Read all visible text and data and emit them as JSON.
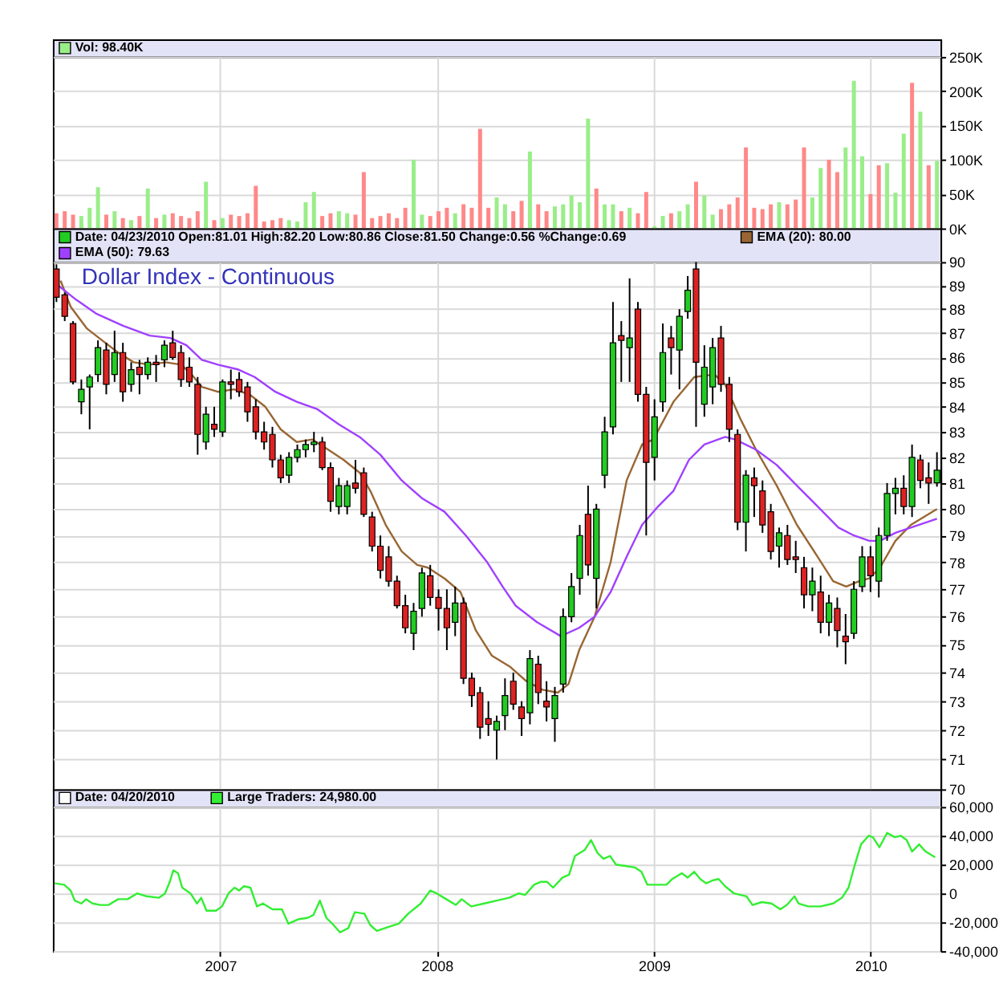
{
  "chart_data": [
    {
      "type": "bar",
      "x": [
        "2006-03-31",
        "2006-04-14",
        "2006-04-28",
        "2006-05-12",
        "2006-05-26",
        "2006-06-09",
        "2006-06-23",
        "2006-07-07",
        "2006-07-21",
        "2006-08-04",
        "2006-08-18",
        "2006-09-01",
        "2006-09-15",
        "2006-09-29",
        "2006-10-13",
        "2006-10-27",
        "2006-11-10",
        "2006-11-24",
        "2006-12-08",
        "2006-12-22",
        "2007-01-05",
        "2007-01-19",
        "2007-02-02",
        "2007-02-16",
        "2007-03-02",
        "2007-03-16",
        "2007-03-30",
        "2007-04-13",
        "2007-04-27",
        "2007-05-11",
        "2007-05-25",
        "2007-06-08",
        "2007-06-22",
        "2007-07-06",
        "2007-07-20",
        "2007-08-03",
        "2007-08-17",
        "2007-08-31",
        "2007-09-14",
        "2007-09-28",
        "2007-10-12",
        "2007-10-26",
        "2007-11-09",
        "2007-11-23",
        "2007-12-07",
        "2007-12-21",
        "2008-01-04",
        "2008-01-18",
        "2008-02-01",
        "2008-02-15",
        "2008-02-29",
        "2008-03-14",
        "2008-03-28",
        "2008-04-11",
        "2008-04-25",
        "2008-05-09",
        "2008-05-23",
        "2008-06-06",
        "2008-06-20",
        "2008-07-04",
        "2008-07-18",
        "2008-08-01",
        "2008-08-15",
        "2008-08-29",
        "2008-09-12",
        "2008-09-26",
        "2008-10-10",
        "2008-10-24",
        "2008-11-07",
        "2008-11-21",
        "2008-12-05",
        "2008-12-19",
        "2009-01-02",
        "2009-01-16",
        "2009-01-30",
        "2009-02-13",
        "2009-02-27",
        "2009-03-13",
        "2009-03-27",
        "2009-04-10",
        "2009-04-24",
        "2009-05-08",
        "2009-05-22",
        "2009-06-05",
        "2009-06-19",
        "2009-07-03",
        "2009-07-17",
        "2009-07-31",
        "2009-08-14",
        "2009-08-28",
        "2009-09-11",
        "2009-09-25",
        "2009-10-09",
        "2009-10-23",
        "2009-11-06",
        "2009-11-20",
        "2009-12-04",
        "2009-12-18",
        "2010-01-01",
        "2010-01-15",
        "2010-01-29",
        "2010-02-12",
        "2010-02-26",
        "2010-03-12",
        "2010-03-26",
        "2010-04-09",
        "2010-04-23"
      ],
      "series": [
        {
          "name": "Vol: 98.40K",
          "color": "#99ee88",
          "values": [
            22000,
            25000,
            20000,
            18000,
            30000,
            60000,
            20000,
            25000,
            15000,
            12000,
            18000,
            58000,
            15000,
            20000,
            22000,
            18000,
            15000,
            25000,
            68000,
            12000,
            15000,
            20000,
            18000,
            22000,
            62000,
            10000,
            12000,
            15000,
            12000,
            10000,
            38000,
            53000,
            18000,
            22000,
            25000,
            22000,
            20000,
            82000,
            15000,
            18000,
            22000,
            15000,
            30000,
            100000,
            20000,
            18000,
            25000,
            30000,
            22000,
            35000,
            30000,
            145000,
            30000,
            45000,
            35000,
            25000,
            40000,
            112000,
            35000,
            25000,
            32000,
            35000,
            48000,
            38000,
            160000,
            58000,
            35000,
            35000,
            25000,
            30000,
            22000,
            53000,
            3000,
            18000,
            22000,
            25000,
            35000,
            68000,
            48000,
            20000,
            28000,
            35000,
            45000,
            118000,
            30000,
            28000,
            35000,
            38000,
            35000,
            42000,
            118000,
            45000,
            88000,
            100000,
            82000,
            118000,
            215000,
            105000,
            50000,
            92000,
            95000,
            52000,
            138000,
            212000,
            170000,
            92000,
            98400
          ],
          "colors": [
            "#ff8888",
            "#ff8888",
            "#ff8888",
            "#99ee88",
            "#99ee88",
            "#99ee88",
            "#ff8888",
            "#99ee88",
            "#ff8888",
            "#99ee88",
            "#ff8888",
            "#99ee88",
            "#ff8888",
            "#99ee88",
            "#ff8888",
            "#ff8888",
            "#ff8888",
            "#ff8888",
            "#99ee88",
            "#ff8888",
            "#99ee88",
            "#ff8888",
            "#ff8888",
            "#ff8888",
            "#ff8888",
            "#ff8888",
            "#ff8888",
            "#ff8888",
            "#99ee88",
            "#99ee88",
            "#99ee88",
            "#99ee88",
            "#ff8888",
            "#ff8888",
            "#99ee88",
            "#99ee88",
            "#ff8888",
            "#ff8888",
            "#ff8888",
            "#ff8888",
            "#ff8888",
            "#ff8888",
            "#ff8888",
            "#99ee88",
            "#99ee88",
            "#ff8888",
            "#ff8888",
            "#ff8888",
            "#99ee88",
            "#ff8888",
            "#ff8888",
            "#ff8888",
            "#ff8888",
            "#99ee88",
            "#99ee88",
            "#ff8888",
            "#ff8888",
            "#99ee88",
            "#ff8888",
            "#ff8888",
            "#99ee88",
            "#99ee88",
            "#99ee88",
            "#99ee88",
            "#99ee88",
            "#ff8888",
            "#99ee88",
            "#99ee88",
            "#ff8888",
            "#99ee88",
            "#ff8888",
            "#ff8888",
            "#99ee88",
            "#99ee88",
            "#ff8888",
            "#99ee88",
            "#99ee88",
            "#ff8888",
            "#99ee88",
            "#99ee88",
            "#ff8888",
            "#ff8888",
            "#ff8888",
            "#ff8888",
            "#ff8888",
            "#ff8888",
            "#ff8888",
            "#99ee88",
            "#ff8888",
            "#ff8888",
            "#ff8888",
            "#99ee88",
            "#99ee88",
            "#ff8888",
            "#ff8888",
            "#99ee88",
            "#99ee88",
            "#99ee88",
            "#ff8888",
            "#ff8888",
            "#99ee88",
            "#99ee88",
            "#99ee88",
            "#ff8888",
            "#99ee88",
            "#ff8888",
            "#99ee88"
          ]
        }
      ],
      "ylim": [
        0,
        250000
      ],
      "yticks": [
        {
          "value": 0,
          "label": "0K"
        },
        {
          "value": 50000,
          "label": "50K"
        },
        {
          "value": 100000,
          "label": "100K"
        },
        {
          "value": 150000,
          "label": "150K"
        },
        {
          "value": 200000,
          "label": "200K"
        },
        {
          "value": 250000,
          "label": "250K"
        }
      ],
      "xlim": [
        "2006-03-25",
        "2010-04-29"
      ],
      "xticks": [
        "2007",
        "2008",
        "2009",
        "2010"
      ],
      "grid": true,
      "tick_labels": "y",
      "legend": "top left"
    },
    {
      "type": "candlestick",
      "title": "Dollar Index - Continuous",
      "annotations": [
        "Date: 04/23/2010 Open:81.01 High:82.20 Low:80.86 Close:81.50 Change:0.56 %Change:0.69"
      ],
      "x": [
        "2006-03-31",
        "2006-04-14",
        "2006-04-28",
        "2006-05-12",
        "2006-05-26",
        "2006-06-09",
        "2006-06-23",
        "2006-07-07",
        "2006-07-21",
        "2006-08-04",
        "2006-08-18",
        "2006-09-01",
        "2006-09-15",
        "2006-09-29",
        "2006-10-13",
        "2006-10-27",
        "2006-11-10",
        "2006-11-24",
        "2006-12-08",
        "2006-12-22",
        "2007-01-05",
        "2007-01-19",
        "2007-02-02",
        "2007-02-16",
        "2007-03-02",
        "2007-03-16",
        "2007-03-30",
        "2007-04-13",
        "2007-04-27",
        "2007-05-11",
        "2007-05-25",
        "2007-06-08",
        "2007-06-22",
        "2007-07-06",
        "2007-07-20",
        "2007-08-03",
        "2007-08-17",
        "2007-08-31",
        "2007-09-14",
        "2007-09-28",
        "2007-10-12",
        "2007-10-26",
        "2007-11-09",
        "2007-11-23",
        "2007-12-07",
        "2007-12-21",
        "2008-01-04",
        "2008-01-18",
        "2008-02-01",
        "2008-02-15",
        "2008-02-29",
        "2008-03-14",
        "2008-03-28",
        "2008-04-11",
        "2008-04-25",
        "2008-05-09",
        "2008-05-23",
        "2008-06-06",
        "2008-06-20",
        "2008-07-04",
        "2008-07-18",
        "2008-08-01",
        "2008-08-15",
        "2008-08-29",
        "2008-09-12",
        "2008-09-26",
        "2008-10-10",
        "2008-10-24",
        "2008-11-07",
        "2008-11-21",
        "2008-12-05",
        "2008-12-19",
        "2009-01-02",
        "2009-01-16",
        "2009-01-30",
        "2009-02-13",
        "2009-02-27",
        "2009-03-13",
        "2009-03-27",
        "2009-04-10",
        "2009-04-24",
        "2009-05-08",
        "2009-05-22",
        "2009-06-05",
        "2009-06-19",
        "2009-07-03",
        "2009-07-17",
        "2009-07-31",
        "2009-08-14",
        "2009-08-28",
        "2009-09-11",
        "2009-09-25",
        "2009-10-09",
        "2009-10-23",
        "2009-11-06",
        "2009-11-20",
        "2009-12-04",
        "2009-12-18",
        "2010-01-01",
        "2010-01-15",
        "2010-01-29",
        "2010-02-12",
        "2010-02-26",
        "2010-03-12",
        "2010-03-26",
        "2010-04-09",
        "2010-04-23"
      ],
      "ohlc": [
        [
          89.7,
          89.9,
          88.3,
          88.5
        ],
        [
          88.6,
          88.7,
          87.5,
          87.7
        ],
        [
          87.4,
          87.5,
          84.9,
          85.0
        ],
        [
          84.2,
          85.1,
          83.7,
          84.7
        ],
        [
          84.8,
          85.3,
          83.1,
          85.2
        ],
        [
          85.3,
          86.7,
          85.0,
          86.4
        ],
        [
          86.3,
          86.6,
          84.5,
          84.9
        ],
        [
          85.3,
          87.1,
          85.0,
          86.2
        ],
        [
          86.2,
          86.6,
          84.2,
          84.6
        ],
        [
          84.9,
          85.8,
          84.6,
          85.5
        ],
        [
          85.6,
          85.9,
          84.5,
          85.3
        ],
        [
          85.3,
          86.0,
          85.1,
          85.8
        ],
        [
          85.8,
          86.1,
          85.0,
          85.7
        ],
        [
          85.9,
          86.7,
          85.6,
          86.5
        ],
        [
          86.6,
          87.1,
          85.9,
          86.0
        ],
        [
          86.2,
          86.5,
          84.8,
          85.1
        ],
        [
          85.6,
          86.0,
          84.8,
          85.0
        ],
        [
          84.9,
          85.2,
          82.1,
          82.9
        ],
        [
          82.6,
          84.0,
          82.3,
          83.7
        ],
        [
          83.3,
          84.0,
          82.8,
          83.1
        ],
        [
          83.0,
          85.1,
          82.8,
          85.0
        ],
        [
          85.0,
          85.5,
          84.3,
          84.9
        ],
        [
          85.1,
          85.4,
          84.4,
          84.6
        ],
        [
          84.8,
          85.0,
          83.4,
          83.8
        ],
        [
          84.0,
          84.3,
          82.7,
          83.0
        ],
        [
          83.0,
          83.4,
          82.3,
          82.6
        ],
        [
          82.9,
          83.2,
          81.6,
          81.9
        ],
        [
          81.9,
          82.1,
          81.0,
          81.2
        ],
        [
          81.3,
          82.2,
          81.0,
          82.0
        ],
        [
          82.0,
          82.5,
          81.8,
          82.3
        ],
        [
          82.3,
          82.7,
          82.0,
          82.5
        ],
        [
          82.5,
          83.0,
          82.2,
          82.6
        ],
        [
          82.6,
          82.8,
          81.5,
          81.6
        ],
        [
          81.6,
          81.8,
          79.9,
          80.3
        ],
        [
          80.1,
          81.2,
          79.8,
          80.9
        ],
        [
          80.1,
          81.1,
          79.8,
          80.9
        ],
        [
          81.0,
          81.9,
          80.6,
          80.8
        ],
        [
          81.4,
          81.6,
          79.7,
          79.8
        ],
        [
          79.7,
          79.9,
          78.4,
          78.6
        ],
        [
          78.6,
          79.0,
          77.4,
          77.7
        ],
        [
          78.2,
          78.6,
          77.1,
          77.3
        ],
        [
          77.3,
          77.5,
          76.3,
          76.4
        ],
        [
          76.4,
          76.8,
          75.4,
          75.6
        ],
        [
          75.4,
          76.5,
          74.8,
          76.2
        ],
        [
          76.3,
          77.8,
          76.0,
          77.6
        ],
        [
          77.5,
          77.9,
          76.4,
          76.7
        ],
        [
          76.7,
          77.0,
          75.5,
          76.3
        ],
        [
          76.3,
          77.0,
          74.8,
          75.6
        ],
        [
          75.8,
          77.1,
          75.3,
          76.5
        ],
        [
          76.5,
          76.7,
          73.6,
          73.8
        ],
        [
          73.8,
          74.0,
          72.8,
          73.2
        ],
        [
          73.3,
          73.5,
          71.7,
          72.1
        ],
        [
          72.4,
          73.0,
          71.8,
          72.2
        ],
        [
          72.0,
          72.5,
          71.0,
          72.3
        ],
        [
          72.5,
          73.8,
          72.0,
          73.2
        ],
        [
          73.7,
          74.0,
          72.7,
          72.9
        ],
        [
          72.8,
          73.0,
          71.8,
          72.4
        ],
        [
          72.6,
          74.8,
          72.2,
          74.5
        ],
        [
          74.3,
          74.6,
          72.9,
          73.3
        ],
        [
          73.0,
          73.7,
          72.3,
          72.8
        ],
        [
          72.4,
          73.5,
          71.6,
          73.2
        ],
        [
          73.6,
          76.3,
          73.3,
          76.0
        ],
        [
          76.0,
          77.6,
          75.8,
          77.1
        ],
        [
          77.4,
          79.4,
          76.8,
          79.0
        ],
        [
          79.8,
          80.9,
          77.5,
          77.9
        ],
        [
          77.4,
          80.2,
          76.3,
          80.0
        ],
        [
          81.3,
          83.6,
          80.8,
          83.0
        ],
        [
          83.2,
          88.3,
          82.9,
          86.6
        ],
        [
          86.9,
          87.5,
          85.0,
          86.7
        ],
        [
          86.4,
          89.3,
          85.0,
          86.8
        ],
        [
          88.0,
          88.3,
          84.2,
          84.5
        ],
        [
          84.5,
          84.8,
          79.0,
          81.8
        ],
        [
          82.0,
          84.3,
          81.1,
          83.6
        ],
        [
          84.2,
          87.4,
          83.8,
          86.2
        ],
        [
          86.8,
          87.3,
          85.3,
          86.4
        ],
        [
          86.3,
          88.0,
          84.7,
          87.7
        ],
        [
          87.9,
          89.4,
          87.6,
          88.8
        ],
        [
          89.7,
          90.0,
          83.2,
          85.8
        ],
        [
          84.1,
          86.5,
          83.6,
          85.6
        ],
        [
          84.8,
          86.8,
          84.1,
          86.4
        ],
        [
          86.8,
          87.3,
          84.6,
          84.9
        ],
        [
          84.9,
          85.2,
          82.6,
          83.1
        ],
        [
          82.9,
          83.1,
          79.2,
          79.5
        ],
        [
          79.5,
          81.5,
          78.4,
          81.3
        ],
        [
          81.2,
          81.6,
          79.7,
          80.9
        ],
        [
          80.7,
          81.1,
          79.1,
          79.4
        ],
        [
          79.9,
          80.2,
          78.1,
          78.4
        ],
        [
          78.6,
          79.3,
          77.8,
          79.1
        ],
        [
          79.0,
          79.4,
          77.9,
          78.1
        ],
        [
          78.2,
          78.8,
          77.6,
          78.1
        ],
        [
          77.8,
          78.2,
          76.3,
          76.8
        ],
        [
          76.8,
          77.8,
          76.2,
          77.3
        ],
        [
          76.9,
          77.5,
          75.4,
          75.8
        ],
        [
          75.8,
          76.8,
          75.3,
          76.5
        ],
        [
          76.3,
          76.7,
          74.9,
          75.5
        ],
        [
          75.3,
          76.1,
          74.3,
          75.1
        ],
        [
          75.4,
          77.3,
          75.2,
          77.0
        ],
        [
          77.1,
          78.6,
          76.9,
          78.2
        ],
        [
          78.2,
          78.6,
          76.9,
          77.5
        ],
        [
          77.3,
          79.3,
          76.7,
          79.0
        ],
        [
          79.0,
          81.0,
          78.8,
          80.6
        ],
        [
          80.6,
          81.2,
          79.8,
          80.8
        ],
        [
          80.8,
          81.3,
          79.8,
          80.1
        ],
        [
          80.1,
          82.5,
          79.7,
          82.0
        ],
        [
          81.9,
          82.1,
          80.8,
          81.1
        ],
        [
          81.2,
          81.8,
          80.2,
          81.0
        ],
        [
          81.01,
          82.2,
          80.86,
          81.5
        ]
      ],
      "colors": [
        "#dd2222",
        "#dd2222",
        "#dd2222",
        "#22cc22",
        "#22cc22",
        "#22cc22",
        "#dd2222",
        "#22cc22",
        "#dd2222",
        "#22cc22",
        "#dd2222",
        "#22cc22",
        "#dd2222",
        "#22cc22",
        "#dd2222",
        "#dd2222",
        "#dd2222",
        "#dd2222",
        "#22cc22",
        "#dd2222",
        "#22cc22",
        "#dd2222",
        "#dd2222",
        "#dd2222",
        "#dd2222",
        "#dd2222",
        "#dd2222",
        "#dd2222",
        "#22cc22",
        "#22cc22",
        "#22cc22",
        "#22cc22",
        "#dd2222",
        "#dd2222",
        "#22cc22",
        "#22cc22",
        "#dd2222",
        "#dd2222",
        "#dd2222",
        "#dd2222",
        "#dd2222",
        "#dd2222",
        "#dd2222",
        "#22cc22",
        "#22cc22",
        "#dd2222",
        "#dd2222",
        "#dd2222",
        "#22cc22",
        "#dd2222",
        "#dd2222",
        "#dd2222",
        "#dd2222",
        "#22cc22",
        "#22cc22",
        "#dd2222",
        "#dd2222",
        "#22cc22",
        "#dd2222",
        "#dd2222",
        "#22cc22",
        "#22cc22",
        "#22cc22",
        "#22cc22",
        "#dd2222",
        "#22cc22",
        "#22cc22",
        "#22cc22",
        "#dd2222",
        "#22cc22",
        "#dd2222",
        "#dd2222",
        "#22cc22",
        "#22cc22",
        "#dd2222",
        "#22cc22",
        "#22cc22",
        "#dd2222",
        "#22cc22",
        "#22cc22",
        "#dd2222",
        "#dd2222",
        "#dd2222",
        "#22cc22",
        "#dd2222",
        "#dd2222",
        "#dd2222",
        "#22cc22",
        "#dd2222",
        "#dd2222",
        "#dd2222",
        "#22cc22",
        "#dd2222",
        "#22cc22",
        "#dd2222",
        "#dd2222",
        "#22cc22",
        "#22cc22",
        "#dd2222",
        "#22cc22",
        "#22cc22",
        "#22cc22",
        "#dd2222",
        "#22cc22",
        "#dd2222",
        "#dd2222",
        "#22cc22"
      ],
      "series": [
        {
          "name": "EMA (20): 80.00",
          "type": "line",
          "color": "#996633",
          "x": [
            "2006-04-07",
            "2006-04-24",
            "2006-05-21",
            "2006-06-16",
            "2006-07-13",
            "2006-08-08",
            "2006-09-04",
            "2006-10-01",
            "2006-10-27",
            "2006-11-14",
            "2006-12-01",
            "2006-12-28",
            "2007-01-24",
            "2007-02-19",
            "2007-03-18",
            "2007-04-13",
            "2007-05-10",
            "2007-06-05",
            "2007-07-02",
            "2007-07-28",
            "2007-08-24",
            "2007-09-11",
            "2007-10-07",
            "2007-11-03",
            "2007-11-29",
            "2007-12-17",
            "2008-01-14",
            "2008-02-10",
            "2008-03-07",
            "2008-04-03",
            "2008-05-04",
            "2008-05-31",
            "2008-06-27",
            "2008-07-23",
            "2008-08-10",
            "2008-08-28",
            "2008-09-23",
            "2008-10-20",
            "2008-11-16",
            "2008-12-12",
            "2008-12-31",
            "2009-02-03",
            "2009-03-10",
            "2009-04-13",
            "2009-05-01",
            "2009-05-27",
            "2009-06-22",
            "2009-07-27",
            "2009-08-30",
            "2009-10-04",
            "2009-10-30",
            "2009-11-21",
            "2009-12-13",
            "2009-12-30",
            "2010-01-17",
            "2010-02-12",
            "2010-03-10",
            "2010-04-23"
          ],
          "values": [
            89.2,
            88.1,
            87.2,
            86.7,
            86.2,
            85.8,
            85.7,
            85.8,
            85.7,
            85.3,
            84.8,
            84.6,
            84.7,
            84.5,
            84.0,
            83.1,
            82.6,
            82.7,
            82.3,
            81.9,
            81.4,
            80.7,
            79.4,
            78.4,
            77.9,
            77.8,
            77.4,
            76.9,
            75.5,
            74.6,
            74.2,
            73.7,
            73.4,
            73.3,
            73.6,
            74.8,
            76.0,
            78.0,
            81.1,
            82.5,
            82.7,
            84.2,
            85.2,
            85.3,
            84.9,
            83.5,
            82.3,
            80.9,
            79.4,
            78.2,
            77.3,
            77.1,
            77.3,
            77.4,
            77.8,
            78.8,
            79.4,
            80.0
          ]
        },
        {
          "name": "EMA (50): 79.63",
          "type": "line",
          "color": "#a040ff",
          "x": [
            "2006-03-29",
            "2006-05-03",
            "2006-06-07",
            "2006-07-22",
            "2006-09-04",
            "2006-10-09",
            "2006-11-05",
            "2006-12-01",
            "2006-12-28",
            "2007-02-01",
            "2007-02-28",
            "2007-04-04",
            "2007-05-10",
            "2007-06-14",
            "2007-07-20",
            "2007-08-24",
            "2007-09-28",
            "2007-11-03",
            "2007-12-08",
            "2008-01-14",
            "2008-02-19",
            "2008-03-26",
            "2008-04-21",
            "2008-05-13",
            "2008-06-18",
            "2008-07-28",
            "2008-08-28",
            "2008-09-23",
            "2008-10-20",
            "2008-11-16",
            "2008-12-12",
            "2009-01-08",
            "2009-02-03",
            "2009-03-01",
            "2009-03-27",
            "2009-05-01",
            "2009-05-18",
            "2009-06-22",
            "2009-07-27",
            "2009-08-30",
            "2009-10-04",
            "2009-11-08",
            "2009-12-04",
            "2009-12-30",
            "2010-01-17",
            "2010-02-12",
            "2010-03-10",
            "2010-04-23"
          ],
          "values": [
            89.1,
            88.4,
            87.8,
            87.3,
            86.9,
            86.8,
            86.5,
            85.9,
            85.7,
            85.5,
            85.2,
            84.6,
            84.2,
            83.9,
            83.3,
            82.8,
            82.1,
            81.1,
            80.4,
            79.9,
            79.0,
            78.0,
            77.1,
            76.4,
            75.8,
            75.3,
            75.6,
            76.0,
            76.9,
            78.2,
            79.4,
            80.1,
            80.7,
            81.9,
            82.5,
            82.8,
            82.7,
            82.3,
            81.7,
            80.9,
            80.1,
            79.3,
            79.0,
            78.8,
            78.8,
            79.1,
            79.3,
            79.63
          ]
        }
      ],
      "log": "y",
      "ylim": [
        70,
        90
      ],
      "yticks": [
        70,
        71,
        72,
        73,
        74,
        75,
        76,
        77,
        78,
        79,
        80,
        81,
        82,
        83,
        84,
        85,
        86,
        87,
        88,
        89,
        90
      ],
      "xlim": [
        "2006-03-25",
        "2010-04-29"
      ],
      "xticks": [
        "2007",
        "2008",
        "2009",
        "2010"
      ],
      "grid": true,
      "tick_labels": "y",
      "legend": "top left"
    },
    {
      "type": "line",
      "annotations": [
        "Date: 04/20/2010"
      ],
      "series": [
        {
          "name": "Large Traders: 24,980.00",
          "color": "#33ee33",
          "x": [
            "2006-03-28",
            "2006-04-13",
            "2006-04-24",
            "2006-05-01",
            "2006-05-12",
            "2006-05-20",
            "2006-05-31",
            "2006-06-13",
            "2006-06-27",
            "2006-07-13",
            "2006-07-29",
            "2006-08-14",
            "2006-08-30",
            "2006-09-20",
            "2006-09-30",
            "2006-10-08",
            "2006-10-14",
            "2006-10-22",
            "2006-10-29",
            "2006-11-12",
            "2006-11-23",
            "2006-11-30",
            "2006-12-09",
            "2006-12-25",
            "2007-01-04",
            "2007-01-15",
            "2007-01-25",
            "2007-02-02",
            "2007-02-10",
            "2007-02-21",
            "2007-03-04",
            "2007-03-14",
            "2007-03-30",
            "2007-04-15",
            "2007-04-26",
            "2007-05-12",
            "2007-05-28",
            "2007-06-07",
            "2007-06-18",
            "2007-06-29",
            "2007-07-09",
            "2007-07-22",
            "2007-08-05",
            "2007-08-16",
            "2007-09-01",
            "2007-09-11",
            "2007-09-22",
            "2007-10-13",
            "2007-10-29",
            "2007-11-14",
            "2007-12-05",
            "2007-12-21",
            "2008-01-01",
            "2008-01-17",
            "2008-02-02",
            "2008-02-12",
            "2008-02-28",
            "2008-03-21",
            "2008-04-11",
            "2008-05-02",
            "2008-05-18",
            "2008-05-29",
            "2008-06-13",
            "2008-06-24",
            "2008-07-05",
            "2008-07-15",
            "2008-07-31",
            "2008-08-11",
            "2008-08-21",
            "2008-09-06",
            "2008-09-17",
            "2008-09-28",
            "2008-10-08",
            "2008-10-19",
            "2008-10-29",
            "2008-11-14",
            "2008-11-30",
            "2008-12-11",
            "2008-12-21",
            "2009-01-11",
            "2009-01-22",
            "2009-02-01",
            "2009-02-17",
            "2009-02-27",
            "2009-03-10",
            "2009-03-20",
            "2009-03-30",
            "2009-04-10",
            "2009-04-20",
            "2009-05-01",
            "2009-05-16",
            "2009-06-06",
            "2009-06-16",
            "2009-07-02",
            "2009-07-18",
            "2009-08-02",
            "2009-08-13",
            "2009-08-26",
            "2009-09-02",
            "2009-09-18",
            "2009-10-09",
            "2009-10-30",
            "2009-11-14",
            "2009-11-25",
            "2009-12-05",
            "2009-12-16",
            "2009-12-29",
            "2010-01-05",
            "2010-01-16",
            "2010-01-29",
            "2010-02-11",
            "2010-02-21",
            "2010-03-03",
            "2010-03-12",
            "2010-03-24",
            "2010-04-04",
            "2010-04-20"
          ],
          "values": [
            7000,
            6000,
            2000,
            -5000,
            -7000,
            -4000,
            -7000,
            -8000,
            -8000,
            -4000,
            -4000,
            0,
            -2000,
            -3000,
            0,
            8000,
            16000,
            14000,
            4000,
            0,
            -7000,
            -3000,
            -12000,
            -12000,
            -9000,
            0,
            4000,
            2000,
            5000,
            4000,
            -9000,
            -7000,
            -11000,
            -11000,
            -21000,
            -18000,
            -17000,
            -15000,
            -5000,
            -17000,
            -21000,
            -27000,
            -24000,
            -13000,
            -14000,
            -22000,
            -26000,
            -23000,
            -21000,
            -14000,
            -7000,
            2000,
            0,
            -4000,
            -8000,
            -4000,
            -9000,
            -7000,
            -5000,
            -3000,
            0,
            -1000,
            6000,
            8000,
            8000,
            4000,
            11000,
            13000,
            26000,
            30000,
            37000,
            28000,
            24000,
            26000,
            20000,
            19000,
            18000,
            15000,
            6000,
            6000,
            6000,
            10000,
            14000,
            11000,
            15000,
            10000,
            7000,
            9000,
            10000,
            5000,
            0,
            -2000,
            -8000,
            -6000,
            -7000,
            -11000,
            -8000,
            -2000,
            -7000,
            -9000,
            -9000,
            -7000,
            -3000,
            4000,
            19000,
            34000,
            40000,
            39000,
            32000,
            42000,
            39000,
            40000,
            37000,
            29000,
            34000,
            29000,
            24980
          ]
        }
      ],
      "ylim": [
        -40000,
        60000
      ],
      "yticks": [
        {
          "value": -40000,
          "label": "-40,000"
        },
        {
          "value": -20000,
          "label": "-20,000"
        },
        0,
        {
          "value": 20000,
          "label": "20,000"
        },
        {
          "value": 40000,
          "label": "40,000"
        },
        {
          "value": 60000,
          "label": "60,000"
        }
      ],
      "xlim": [
        "2006-03-25",
        "2010-04-29"
      ],
      "xticks": [
        "2007",
        "2008",
        "2009",
        "2010"
      ],
      "grid": true,
      "legend": "top left"
    }
  ]
}
